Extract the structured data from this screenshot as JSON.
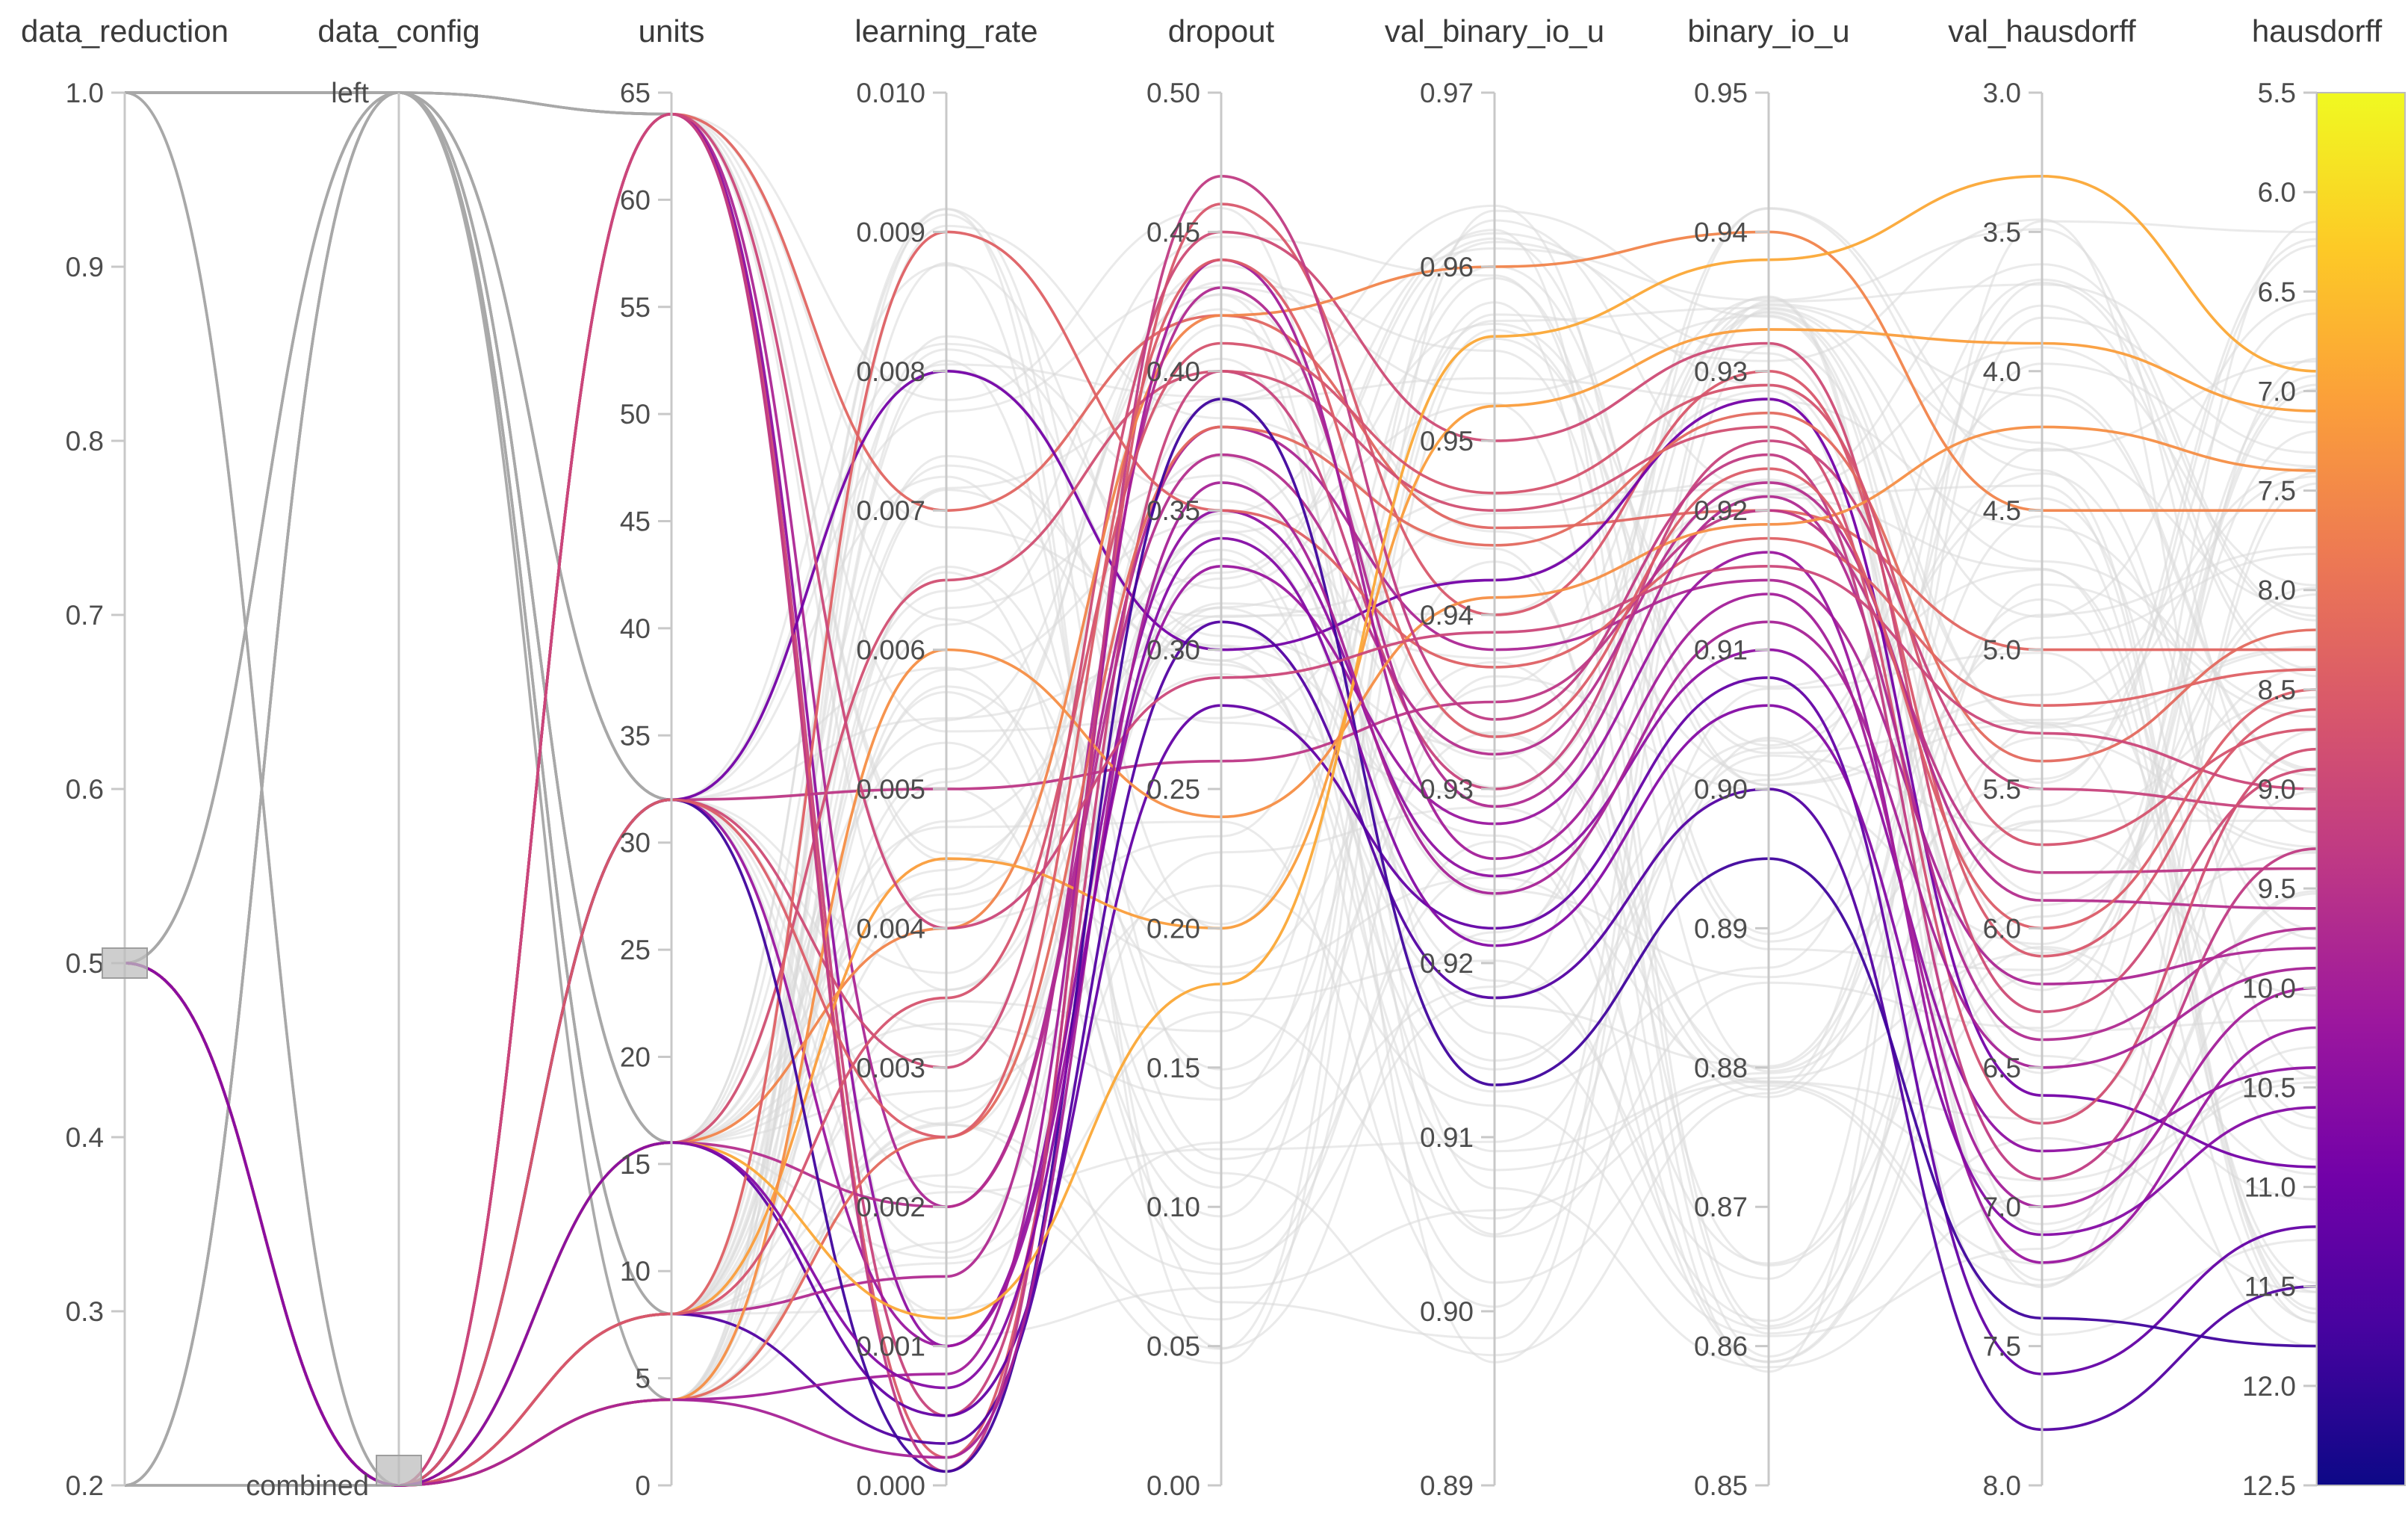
{
  "chart_data": {
    "type": "parallel_coordinates",
    "color_by": "hausdorff",
    "colorscale": [
      "#0d0887",
      "#46039f",
      "#7201a8",
      "#9c179e",
      "#bd3786",
      "#d8576b",
      "#ed7953",
      "#fb9f3a",
      "#fdca26",
      "#f0f921"
    ],
    "axes": [
      {
        "name": "data_reduction",
        "type": "linear",
        "range": [
          0.2,
          1.0
        ],
        "ticks": [
          "0.2",
          "0.3",
          "0.4",
          "0.5",
          "0.6",
          "0.7",
          "0.8",
          "0.9",
          "1.0"
        ]
      },
      {
        "name": "data_config",
        "type": "categorical",
        "categories": [
          "combined",
          "left"
        ]
      },
      {
        "name": "units",
        "type": "linear",
        "range": [
          0,
          65
        ],
        "ticks": [
          "0",
          "5",
          "10",
          "15",
          "20",
          "25",
          "30",
          "35",
          "40",
          "45",
          "50",
          "55",
          "60",
          "65"
        ]
      },
      {
        "name": "learning_rate",
        "type": "linear",
        "range": [
          0,
          0.01
        ],
        "ticks": [
          "0.000",
          "0.001",
          "0.002",
          "0.003",
          "0.004",
          "0.005",
          "0.006",
          "0.007",
          "0.008",
          "0.009",
          "0.010"
        ]
      },
      {
        "name": "dropout",
        "type": "linear",
        "range": [
          0,
          0.5
        ],
        "ticks": [
          "0.00",
          "0.05",
          "0.10",
          "0.15",
          "0.20",
          "0.25",
          "0.30",
          "0.35",
          "0.40",
          "0.45",
          "0.50"
        ]
      },
      {
        "name": "val_binary_io_u",
        "type": "linear",
        "range": [
          0.89,
          0.97
        ],
        "ticks": [
          "0.89",
          "0.90",
          "0.91",
          "0.92",
          "0.93",
          "0.94",
          "0.95",
          "0.96",
          "0.97"
        ]
      },
      {
        "name": "binary_io_u",
        "type": "linear",
        "range": [
          0.85,
          0.95
        ],
        "ticks": [
          "0.85",
          "0.86",
          "0.87",
          "0.88",
          "0.89",
          "0.90",
          "0.91",
          "0.92",
          "0.93",
          "0.94",
          "0.95"
        ]
      },
      {
        "name": "val_hausdorff",
        "type": "linear",
        "range": [
          8.0,
          3.0
        ],
        "ticks": [
          "3.0",
          "3.5",
          "4.0",
          "4.5",
          "5.0",
          "5.5",
          "6.0",
          "6.5",
          "7.0",
          "7.5",
          "8.0"
        ]
      },
      {
        "name": "hausdorff",
        "type": "linear",
        "range": [
          12.5,
          5.5
        ],
        "ticks": [
          "5.5",
          "6.0",
          "6.5",
          "7.0",
          "7.5",
          "8.0",
          "8.5",
          "9.0",
          "9.5",
          "10.0",
          "10.5",
          "11.0",
          "11.5",
          "12.0",
          "12.5"
        ]
      }
    ],
    "brushes": [
      {
        "axis": "data_reduction",
        "value": 0.5
      },
      {
        "axis": "data_config",
        "value": "combined"
      }
    ],
    "grey_runs": [
      [
        1.0,
        "left",
        64
      ],
      [
        1.0,
        "left",
        64
      ],
      [
        1.0,
        "left",
        32
      ],
      [
        1.0,
        "left",
        32
      ],
      [
        1.0,
        "left",
        16
      ],
      [
        1.0,
        "left",
        16
      ],
      [
        1.0,
        "left",
        8
      ],
      [
        1.0,
        "left",
        4
      ],
      [
        1.0,
        "combined",
        32
      ],
      [
        1.0,
        "combined",
        16
      ],
      [
        0.2,
        "left",
        64
      ],
      [
        0.2,
        "left",
        32
      ],
      [
        0.2,
        "left",
        16
      ],
      [
        0.2,
        "left",
        8
      ],
      [
        0.2,
        "combined",
        16
      ],
      [
        0.2,
        "combined",
        4
      ],
      [
        0.5,
        "left",
        64
      ],
      [
        0.5,
        "left",
        32
      ],
      [
        0.5,
        "left",
        16
      ],
      [
        0.5,
        "left",
        8
      ]
    ],
    "highlighted_runs": [
      [
        0.5,
        "combined",
        64,
        0.007,
        0.42,
        0.945,
        0.92,
        5.0,
        8.3
      ],
      [
        0.5,
        "combined",
        64,
        0.002,
        0.38,
        0.938,
        0.915,
        6.2,
        9.8
      ],
      [
        0.5,
        "combined",
        64,
        0.0005,
        0.4,
        0.93,
        0.925,
        5.5,
        9.1
      ],
      [
        0.5,
        "combined",
        64,
        0.001,
        0.35,
        0.925,
        0.91,
        6.8,
        10.4
      ],
      [
        0.5,
        "combined",
        64,
        0.0002,
        0.46,
        0.94,
        0.93,
        6.1,
        8.6
      ],
      [
        0.5,
        "combined",
        32,
        0.005,
        0.26,
        0.935,
        0.92,
        5.8,
        9.4
      ],
      [
        0.5,
        "combined",
        32,
        0.008,
        0.3,
        0.942,
        0.928,
        6.6,
        10.9
      ],
      [
        0.5,
        "combined",
        32,
        0.003,
        0.45,
        0.95,
        0.932,
        6.3,
        8.9
      ],
      [
        0.5,
        "combined",
        32,
        0.001,
        0.33,
        0.928,
        0.917,
        7.2,
        10.2
      ],
      [
        0.5,
        "combined",
        16,
        0.004,
        0.42,
        0.96,
        0.94,
        4.5,
        7.6
      ],
      [
        0.5,
        "combined",
        16,
        0.002,
        0.37,
        0.932,
        0.922,
        5.9,
        9.6
      ],
      [
        0.5,
        "combined",
        16,
        0.0005,
        0.28,
        0.922,
        0.908,
        7.6,
        11.2
      ],
      [
        0.5,
        "combined",
        16,
        0.0065,
        0.4,
        0.946,
        0.926,
        6.7,
        8.8
      ],
      [
        0.5,
        "combined",
        8,
        0.009,
        0.35,
        0.937,
        0.918,
        5.2,
        8.4
      ],
      [
        0.5,
        "combined",
        8,
        0.0015,
        0.43,
        0.929,
        0.921,
        6.4,
        9.7
      ],
      [
        0.5,
        "combined",
        8,
        0.0003,
        0.31,
        0.918,
        0.9,
        7.8,
        11.5
      ],
      [
        0.5,
        "combined",
        8,
        0.0045,
        0.2,
        0.952,
        0.933,
        3.9,
        7.1
      ],
      [
        0.5,
        "combined",
        4,
        0.0025,
        0.38,
        0.944,
        0.927,
        5.4,
        8.2
      ],
      [
        0.5,
        "combined",
        4,
        0.0008,
        0.44,
        0.926,
        0.914,
        7.0,
        10.0
      ],
      [
        0.5,
        "combined",
        4,
        0.006,
        0.24,
        0.941,
        0.919,
        4.2,
        7.4
      ],
      [
        0.5,
        "combined",
        64,
        0.0001,
        0.47,
        0.934,
        0.924,
        6.9,
        9.3
      ],
      [
        0.5,
        "combined",
        32,
        0.0001,
        0.39,
        0.913,
        0.895,
        7.4,
        11.8
      ],
      [
        0.5,
        "combined",
        16,
        0.0012,
        0.18,
        0.956,
        0.938,
        3.3,
        6.9
      ],
      [
        0.5,
        "combined",
        8,
        0.0035,
        0.41,
        0.947,
        0.929,
        5.7,
        8.7
      ],
      [
        0.5,
        "combined",
        4,
        0.0002,
        0.36,
        0.924,
        0.912,
        6.5,
        9.9
      ],
      [
        0.5,
        "combined",
        64,
        0.004,
        0.29,
        0.939,
        0.916,
        5.3,
        9.0
      ],
      [
        0.5,
        "combined",
        32,
        0.0025,
        0.44,
        0.933,
        0.923,
        6.0,
        8.5
      ],
      [
        0.5,
        "combined",
        16,
        0.0007,
        0.34,
        0.921,
        0.906,
        7.1,
        10.6
      ]
    ],
    "background_line_count": 70
  }
}
